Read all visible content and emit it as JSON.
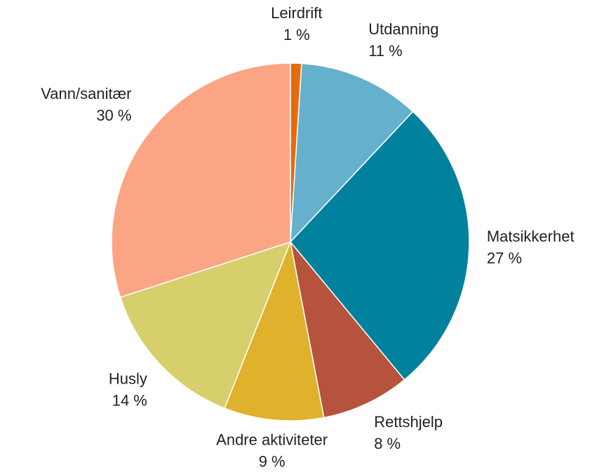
{
  "chart_data": {
    "type": "pie",
    "categories": [
      "Leirdrift",
      "Utdanning",
      "Matsikkerhet",
      "Rettshjelp",
      "Andre aktiviteter",
      "Husly",
      "Vann/sanitær"
    ],
    "values": [
      1,
      11,
      27,
      8,
      9,
      14,
      30
    ],
    "value_labels": [
      "1 %",
      "11 %",
      "27 %",
      "8 %",
      "9 %",
      "14 %",
      "30 %"
    ],
    "colors": [
      "#e46c0a",
      "#65b0cc",
      "#00819e",
      "#b5533c",
      "#e0b12b",
      "#d6cf6b",
      "#fba585"
    ]
  }
}
